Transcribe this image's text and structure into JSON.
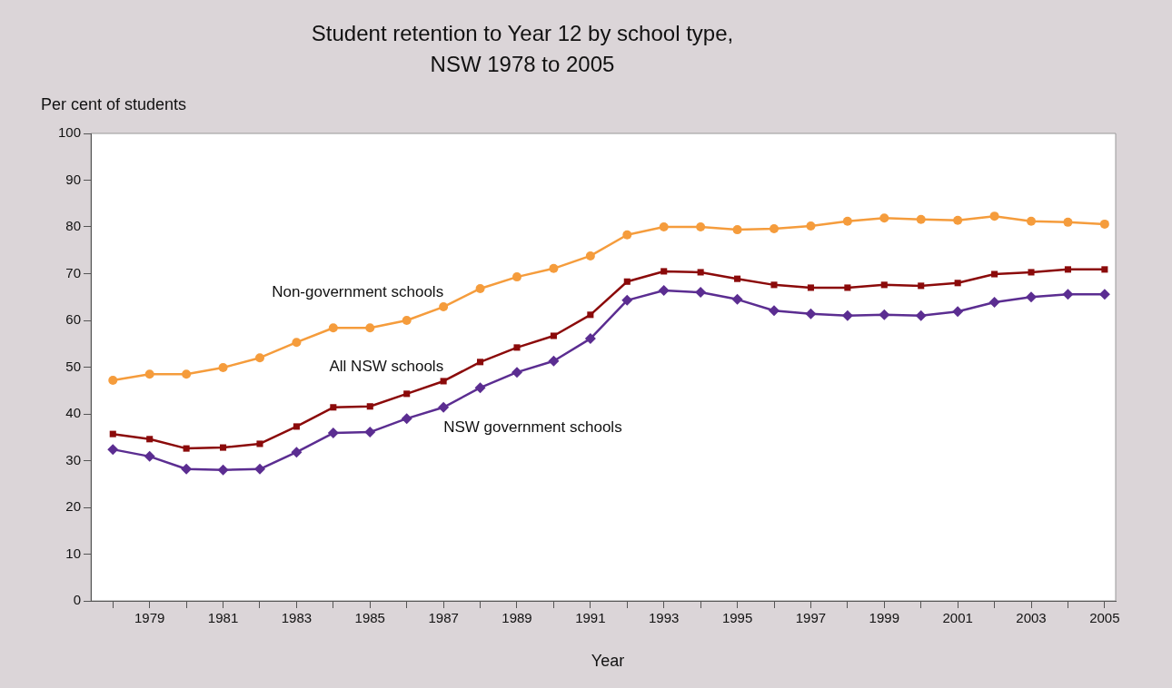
{
  "chart_data": {
    "type": "line",
    "title": "Student retention to Year 12 by school type,\nNSW 1978 to 2005",
    "xlabel": "Year",
    "ylabel": "Per cent of students",
    "x": [
      1978,
      1979,
      1980,
      1981,
      1982,
      1983,
      1984,
      1985,
      1986,
      1987,
      1988,
      1989,
      1990,
      1991,
      1992,
      1993,
      1994,
      1995,
      1996,
      1997,
      1998,
      1999,
      2000,
      2001,
      2002,
      2003,
      2004,
      2005
    ],
    "series": [
      {
        "name": "Non-government schools",
        "color": "#f59c3c",
        "marker": "circle",
        "values": [
          47.2,
          48.5,
          48.5,
          49.9,
          52.0,
          55.3,
          58.4,
          58.4,
          60.0,
          62.9,
          66.8,
          69.3,
          71.1,
          73.8,
          78.3,
          80.0,
          80.0,
          79.4,
          79.6,
          80.2,
          81.2,
          81.9,
          81.6,
          81.4,
          82.3,
          81.2,
          81.0,
          80.6
        ]
      },
      {
        "name": "All NSW schools",
        "color": "#8b0a0a",
        "marker": "square",
        "values": [
          35.7,
          34.6,
          32.6,
          32.8,
          33.6,
          37.3,
          41.4,
          41.6,
          44.3,
          47.0,
          51.1,
          54.2,
          56.7,
          61.2,
          68.3,
          70.5,
          70.3,
          68.9,
          67.6,
          67.0,
          67.0,
          67.6,
          67.4,
          68.0,
          69.9,
          70.3,
          70.9,
          70.9
        ]
      },
      {
        "name": "NSW government schools",
        "color": "#5b2d91",
        "marker": "diamond",
        "values": [
          32.4,
          30.9,
          28.2,
          28.0,
          28.2,
          31.8,
          35.9,
          36.1,
          39.0,
          41.4,
          45.6,
          48.9,
          51.3,
          56.1,
          64.3,
          66.4,
          66.0,
          64.5,
          62.1,
          61.4,
          61.0,
          61.2,
          61.0,
          61.9,
          63.9,
          65.0,
          65.6,
          65.6
        ]
      }
    ],
    "xlim": [
      1977.4,
      2005.3
    ],
    "xticks": [
      {
        "value": 1978,
        "label": null
      },
      1979,
      {
        "value": 1980,
        "label": null
      },
      1981,
      {
        "value": 1982,
        "label": null
      },
      1983,
      {
        "value": 1984,
        "label": null
      },
      1985,
      {
        "value": 1986,
        "label": null
      },
      1987,
      {
        "value": 1988,
        "label": null
      },
      1989,
      {
        "value": 1990,
        "label": null
      },
      1991,
      {
        "value": 1992,
        "label": null
      },
      1993,
      {
        "value": 1994,
        "label": null
      },
      1995,
      {
        "value": 1996,
        "label": null
      },
      1997,
      {
        "value": 1998,
        "label": null
      },
      1999,
      {
        "value": 2000,
        "label": null
      },
      2001,
      {
        "value": 2002,
        "label": null
      },
      2003,
      {
        "value": 2004,
        "label": null
      },
      2005
    ],
    "ylim": [
      0,
      100
    ],
    "yticks": [
      0,
      10,
      20,
      30,
      40,
      50,
      60,
      70,
      80,
      90,
      100
    ],
    "grid": false,
    "legend": false,
    "line_style": "solid"
  }
}
